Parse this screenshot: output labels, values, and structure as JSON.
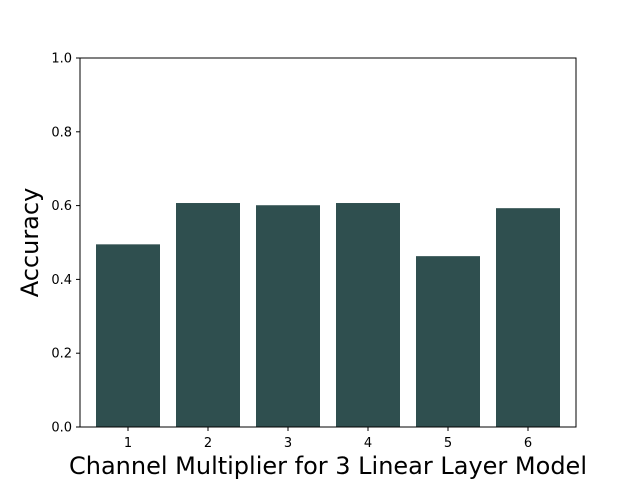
{
  "chart_data": {
    "type": "bar",
    "title": "",
    "xlabel": "Channel Multiplier for 3 Linear Layer Model",
    "ylabel": "Accuracy",
    "categories": [
      "1",
      "2",
      "3",
      "4",
      "5",
      "6"
    ],
    "values": [
      0.495,
      0.607,
      0.601,
      0.607,
      0.463,
      0.593
    ],
    "ylim": [
      0.0,
      1.0
    ],
    "yticks": [
      "0.0",
      "0.2",
      "0.4",
      "0.6",
      "0.8",
      "1.0"
    ],
    "grid": false,
    "legend": "none",
    "colors": {
      "bar": "#2f4f4f",
      "axes": "#000000",
      "background": "#ffffff"
    }
  }
}
